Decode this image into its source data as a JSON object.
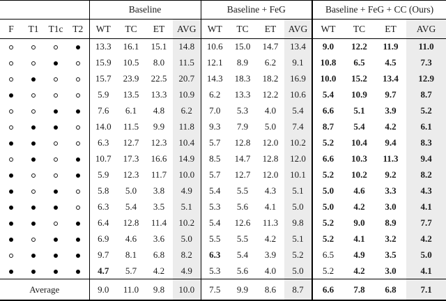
{
  "table": {
    "modality_columns": [
      "F",
      "T1",
      "T1c",
      "T2"
    ],
    "groups": [
      {
        "label": "Baseline",
        "metrics": [
          "WT",
          "TC",
          "ET",
          "AVG"
        ]
      },
      {
        "label": "Baseline + FeG",
        "metrics": [
          "WT",
          "TC",
          "ET",
          "AVG"
        ]
      },
      {
        "label": "Baseline + FeG + CC (Ours)",
        "metrics": [
          "WT",
          "TC",
          "ET",
          "AVG"
        ]
      }
    ],
    "rows": [
      {
        "modalities": [
          0,
          0,
          0,
          1
        ],
        "values": [
          "13.3",
          "16.1",
          "15.1",
          "14.8",
          "10.6",
          "15.0",
          "14.7",
          "13.4",
          "9.0",
          "12.2",
          "11.9",
          "11.0"
        ],
        "bold": [
          8,
          9,
          10,
          11
        ]
      },
      {
        "modalities": [
          0,
          0,
          1,
          0
        ],
        "values": [
          "15.9",
          "10.5",
          "8.0",
          "11.5",
          "12.1",
          "8.9",
          "6.2",
          "9.1",
          "10.8",
          "6.5",
          "4.5",
          "7.3"
        ],
        "bold": [
          8,
          9,
          10,
          11
        ]
      },
      {
        "modalities": [
          0,
          1,
          0,
          0
        ],
        "values": [
          "15.7",
          "23.9",
          "22.5",
          "20.7",
          "14.3",
          "18.3",
          "18.2",
          "16.9",
          "10.0",
          "15.2",
          "13.4",
          "12.9"
        ],
        "bold": [
          8,
          9,
          10,
          11
        ]
      },
      {
        "modalities": [
          1,
          0,
          0,
          0
        ],
        "values": [
          "5.9",
          "13.5",
          "13.3",
          "10.9",
          "6.2",
          "13.3",
          "12.2",
          "10.6",
          "5.4",
          "10.9",
          "9.7",
          "8.7"
        ],
        "bold": [
          8,
          9,
          10,
          11
        ]
      },
      {
        "modalities": [
          0,
          0,
          1,
          1
        ],
        "values": [
          "7.6",
          "6.1",
          "4.8",
          "6.2",
          "7.0",
          "5.3",
          "4.0",
          "5.4",
          "6.6",
          "5.1",
          "3.9",
          "5.2"
        ],
        "bold": [
          8,
          9,
          10,
          11
        ]
      },
      {
        "modalities": [
          0,
          1,
          1,
          0
        ],
        "values": [
          "14.0",
          "11.5",
          "9.9",
          "11.8",
          "9.3",
          "7.9",
          "5.0",
          "7.4",
          "8.7",
          "5.4",
          "4.2",
          "6.1"
        ],
        "bold": [
          8,
          9,
          10,
          11
        ]
      },
      {
        "modalities": [
          1,
          1,
          0,
          0
        ],
        "values": [
          "6.3",
          "12.7",
          "12.3",
          "10.4",
          "5.7",
          "12.8",
          "12.0",
          "10.2",
          "5.2",
          "10.4",
          "9.4",
          "8.3"
        ],
        "bold": [
          8,
          9,
          10,
          11
        ]
      },
      {
        "modalities": [
          0,
          1,
          0,
          1
        ],
        "values": [
          "10.7",
          "17.3",
          "16.6",
          "14.9",
          "8.5",
          "14.7",
          "12.8",
          "12.0",
          "6.6",
          "10.3",
          "11.3",
          "9.4"
        ],
        "bold": [
          8,
          9,
          10,
          11
        ]
      },
      {
        "modalities": [
          1,
          0,
          0,
          1
        ],
        "values": [
          "5.9",
          "12.3",
          "11.7",
          "10.0",
          "5.7",
          "12.7",
          "12.0",
          "10.1",
          "5.2",
          "10.2",
          "9.2",
          "8.2"
        ],
        "bold": [
          8,
          9,
          10,
          11
        ]
      },
      {
        "modalities": [
          1,
          0,
          1,
          0
        ],
        "values": [
          "5.8",
          "5.0",
          "3.8",
          "4.9",
          "5.4",
          "5.5",
          "4.3",
          "5.1",
          "5.0",
          "4.6",
          "3.3",
          "4.3"
        ],
        "bold": [
          8,
          9,
          10,
          11
        ]
      },
      {
        "modalities": [
          1,
          1,
          1,
          0
        ],
        "values": [
          "6.3",
          "5.4",
          "3.5",
          "5.1",
          "5.3",
          "5.6",
          "4.1",
          "5.0",
          "5.0",
          "4.2",
          "3.0",
          "4.1"
        ],
        "bold": [
          8,
          9,
          10,
          11
        ]
      },
      {
        "modalities": [
          1,
          1,
          0,
          1
        ],
        "values": [
          "6.4",
          "12.8",
          "11.4",
          "10.2",
          "5.4",
          "12.6",
          "11.3",
          "9.8",
          "5.2",
          "9.0",
          "8.9",
          "7.7"
        ],
        "bold": [
          8,
          9,
          10,
          11
        ]
      },
      {
        "modalities": [
          1,
          0,
          1,
          1
        ],
        "values": [
          "6.9",
          "4.6",
          "3.6",
          "5.0",
          "5.5",
          "5.5",
          "4.2",
          "5.1",
          "5.2",
          "4.1",
          "3.2",
          "4.2"
        ],
        "bold": [
          8,
          9,
          10,
          11
        ]
      },
      {
        "modalities": [
          0,
          1,
          1,
          1
        ],
        "values": [
          "9.7",
          "8.1",
          "6.8",
          "8.2",
          "6.3",
          "5.4",
          "3.9",
          "5.2",
          "6.5",
          "4.9",
          "3.5",
          "5.0"
        ],
        "bold": [
          4,
          9,
          10,
          11
        ]
      },
      {
        "modalities": [
          1,
          1,
          1,
          1
        ],
        "values": [
          "4.7",
          "5.7",
          "4.2",
          "4.9",
          "5.3",
          "5.6",
          "4.0",
          "5.0",
          "5.2",
          "4.2",
          "3.0",
          "4.1"
        ],
        "bold": [
          0,
          9,
          10,
          11
        ]
      }
    ],
    "average_row": {
      "label": "Average",
      "values": [
        "9.0",
        "11.0",
        "9.8",
        "10.0",
        "7.5",
        "9.9",
        "8.6",
        "8.7",
        "6.6",
        "7.8",
        "6.8",
        "7.1"
      ],
      "bold": [
        8,
        9,
        10,
        11
      ]
    }
  },
  "colors": {
    "avg_column_shade": "#ececec",
    "text": "#1b1b1b",
    "border": "#000000"
  }
}
